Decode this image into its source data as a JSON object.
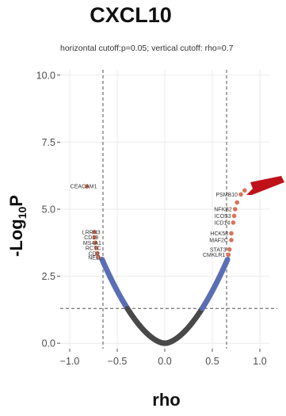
{
  "title": "CXCL10",
  "subtitle": "horizontal cutoff:p=0.05; vertical cutoff: rho=0.7",
  "chart_data": {
    "type": "scatter",
    "xlabel": "rho",
    "ylabel_main": "-Log",
    "ylabel_sub": "10",
    "ylabel_end": "P",
    "xlim": [
      -1.1,
      1.1
    ],
    "ylim": [
      -0.2,
      10.2
    ],
    "x_ticks": [
      -1.0,
      -0.5,
      0.0,
      0.5,
      1.0
    ],
    "x_tick_labels": [
      "−1.0",
      "−0.5",
      "0.0",
      "0.5",
      "1.0"
    ],
    "y_ticks": [
      0.0,
      2.5,
      5.0,
      7.5,
      10.0
    ],
    "y_tick_labels": [
      "0.0",
      "2.5",
      "5.0",
      "7.5",
      "10.0"
    ],
    "cutoffs": {
      "p": 0.05,
      "neg_log10_p": 1.3,
      "rho": [
        -0.65,
        0.65
      ]
    },
    "colors": {
      "ns": "#4a4a4a",
      "p_only": "#5b6fb5",
      "significant": "#d9735a",
      "arrow": "#c0111a",
      "grid": "#ebebeb",
      "cutoff": "#555555"
    },
    "points": [
      {
        "label": "CEACAM1",
        "x": -0.82,
        "y": 5.85
      },
      {
        "label": "LRRN3",
        "x": -0.74,
        "y": 4.15
      },
      {
        "label": "CD19",
        "x": -0.74,
        "y": 3.95
      },
      {
        "label": "MS4A1",
        "x": -0.73,
        "y": 3.75
      },
      {
        "label": "RCTC",
        "x": -0.72,
        "y": 3.55
      },
      {
        "label": "CD2",
        "x": -0.71,
        "y": 3.35
      },
      {
        "label": "NELL",
        "x": -0.7,
        "y": 3.2
      },
      {
        "label": "PSMB10",
        "x": 0.8,
        "y": 5.55
      },
      {
        "label": "NFKB2",
        "x": 0.74,
        "y": 5.0
      },
      {
        "label": "ICOS3",
        "x": 0.73,
        "y": 4.75
      },
      {
        "label": "ICD14",
        "x": 0.72,
        "y": 4.5
      },
      {
        "label": "HCK58",
        "x": 0.7,
        "y": 4.1
      },
      {
        "label": "MAF2C",
        "x": 0.7,
        "y": 3.85
      },
      {
        "label": "STAT3",
        "x": 0.68,
        "y": 3.5
      },
      {
        "label": "CMKLR1",
        "x": 0.67,
        "y": 3.3
      },
      {
        "label": "",
        "x": 0.84,
        "y": 5.7
      },
      {
        "label": "",
        "x": 0.76,
        "y": 5.25
      }
    ]
  }
}
